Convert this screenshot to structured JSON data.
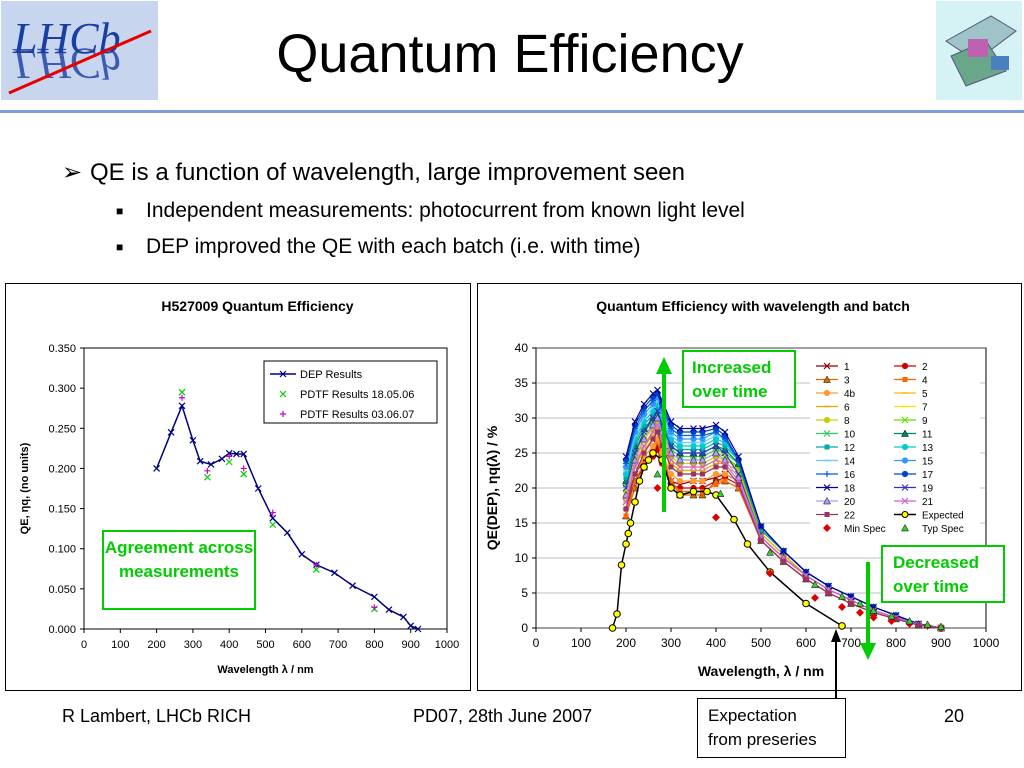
{
  "slide": {
    "title": "Quantum Efficiency",
    "bullets": [
      {
        "text": "QE is a function of wavelength, large improvement seen"
      },
      {
        "text": "Independent measurements: photocurrent from known light level"
      },
      {
        "text": "DEP improved the QE with each batch (i.e. with time)"
      }
    ],
    "footer_left": "R Lambert, LHCb RICH",
    "footer_center": "PD07, 28th June 2007",
    "footer_right": "20",
    "logo_left_text": "LHCb",
    "callouts": {
      "agreement": "Agreement across measurements",
      "increased": "Increased over time",
      "decreased": "Decreased over time",
      "expectation": "Expectation from preseries"
    },
    "colors": {
      "accent_green": "#00cc00",
      "title_rule": "#7ba0d8"
    }
  },
  "chart_data": [
    {
      "type": "line",
      "title": "H527009 Quantum Efficiency",
      "xlabel": "Wavelength λ / nm",
      "ylabel": "QE, ηq, (no units)",
      "xlim": [
        0,
        1000
      ],
      "ylim": [
        0,
        0.35
      ],
      "xticks": [
        "0",
        "100",
        "200",
        "300",
        "400",
        "500",
        "600",
        "700",
        "800",
        "900",
        "1000"
      ],
      "yticks": [
        "0.000",
        "0.050",
        "0.100",
        "0.150",
        "0.200",
        "0.250",
        "0.300",
        "0.350"
      ],
      "legend_position": "top-right",
      "series": [
        {
          "name": "DEP Results",
          "color": "#000080",
          "marker": "x",
          "x": [
            200,
            240,
            270,
            300,
            320,
            350,
            380,
            400,
            420,
            440,
            480,
            520,
            560,
            600,
            640,
            690,
            740,
            800,
            840,
            880,
            900,
            920
          ],
          "y": [
            0.2,
            0.245,
            0.278,
            0.235,
            0.209,
            0.205,
            0.212,
            0.219,
            0.218,
            0.218,
            0.175,
            0.138,
            0.12,
            0.093,
            0.08,
            0.07,
            0.054,
            0.04,
            0.024,
            0.015,
            0.004,
            0.0
          ]
        },
        {
          "name": "PDTF Results 18.05.06",
          "color": "#00cc00",
          "marker": "x",
          "x": [
            270,
            340,
            400,
            440,
            520,
            640,
            800
          ],
          "y": [
            0.295,
            0.189,
            0.208,
            0.193,
            0.13,
            0.074,
            0.025
          ]
        },
        {
          "name": "PDTF Results 03.06.07",
          "color": "#cc00cc",
          "marker": "+",
          "x": [
            270,
            340,
            400,
            440,
            520,
            640,
            800
          ],
          "y": [
            0.288,
            0.197,
            0.215,
            0.2,
            0.145,
            0.08,
            0.027
          ]
        }
      ]
    },
    {
      "type": "line",
      "title": "Quantum Efficiency with wavelength and batch",
      "xlabel": "Wavelength, λ / nm",
      "ylabel": "QE(DEP), ηq(λ) / %",
      "xlim": [
        0,
        1000
      ],
      "ylim": [
        0,
        40
      ],
      "xticks": [
        "0",
        "100",
        "200",
        "300",
        "400",
        "500",
        "600",
        "700",
        "800",
        "900",
        "1000"
      ],
      "yticks": [
        "0",
        "5",
        "10",
        "15",
        "20",
        "25",
        "30",
        "35",
        "40"
      ],
      "legend_position": "top-right",
      "x": [
        200,
        220,
        240,
        260,
        270,
        280,
        300,
        320,
        350,
        370,
        400,
        420,
        450,
        500,
        550,
        600,
        650,
        700,
        750,
        800,
        850,
        900
      ],
      "series": [
        {
          "name": "1",
          "color": "#8b0000",
          "marker": "x",
          "values": [
            18,
            22,
            24,
            25,
            26,
            24,
            21,
            20.5,
            21,
            21,
            21.5,
            22,
            21,
            13,
            10,
            7.5,
            5.5,
            4,
            2.5,
            1.5,
            0.5,
            0
          ]
        },
        {
          "name": "2",
          "color": "#cc0000",
          "marker": "o",
          "values": [
            17,
            21,
            23,
            24.5,
            25.5,
            23.5,
            20.5,
            20,
            20,
            20,
            21,
            21.5,
            20.5,
            12.5,
            9.5,
            7,
            5,
            3.5,
            2.2,
            1.3,
            0.4,
            0
          ]
        },
        {
          "name": "3",
          "color": "#d96c00",
          "marker": "^",
          "values": [
            16,
            20,
            23,
            25,
            27,
            25,
            21,
            19,
            19,
            19,
            21,
            21,
            20,
            12.5,
            9.5,
            7,
            5,
            3.5,
            2.2,
            1.3,
            0.4,
            0
          ]
        },
        {
          "name": "4",
          "color": "#ff6600",
          "marker": "s",
          "values": [
            16,
            21,
            23.5,
            25.5,
            26.5,
            24.5,
            21,
            19.5,
            19.5,
            19.5,
            20.5,
            21,
            20,
            12.5,
            9.5,
            7,
            5,
            3.5,
            2.2,
            1.3,
            0.4,
            0
          ]
        },
        {
          "name": "4b",
          "color": "#ff9933",
          "marker": "o",
          "values": [
            17,
            22,
            24.5,
            26,
            27,
            25,
            22,
            21,
            21,
            21,
            22,
            22,
            21,
            13,
            10,
            7.5,
            5.5,
            4,
            2.5,
            1.5,
            0.5,
            0
          ]
        },
        {
          "name": "5",
          "color": "#ffbb00",
          "marker": "-",
          "values": [
            18,
            23,
            25.5,
            27,
            28,
            26,
            23,
            22,
            22,
            22,
            23,
            23,
            22,
            13.5,
            10.5,
            7.5,
            5.5,
            4,
            2.5,
            1.5,
            0.5,
            0
          ]
        },
        {
          "name": "6",
          "color": "#e6a800",
          "marker": "-",
          "values": [
            18.5,
            23.5,
            26,
            27.5,
            28.5,
            26.5,
            23.5,
            22.5,
            22.5,
            22.5,
            23.5,
            23.5,
            22.5,
            13.5,
            10.5,
            7.5,
            5.5,
            4,
            2.5,
            1.5,
            0.5,
            0
          ]
        },
        {
          "name": "7",
          "color": "#ffdd00",
          "marker": "-",
          "values": [
            19,
            24,
            26.5,
            28,
            29,
            27,
            24,
            23,
            23,
            23,
            24,
            24,
            23,
            14,
            11,
            8,
            6,
            4.5,
            3,
            1.8,
            0.6,
            0
          ]
        },
        {
          "name": "8",
          "color": "#cccc00",
          "marker": "o",
          "values": [
            19.5,
            24.5,
            27,
            28.5,
            29.5,
            27.5,
            24.5,
            23.5,
            23.5,
            23.5,
            24.5,
            24,
            23,
            14,
            11,
            8,
            6,
            4.5,
            3,
            1.8,
            0.6,
            0
          ]
        },
        {
          "name": "9",
          "color": "#66dd00",
          "marker": "x",
          "values": [
            20,
            25,
            27.5,
            29,
            30,
            28,
            25,
            24,
            24,
            24,
            25,
            24.5,
            23,
            14,
            11,
            8,
            6,
            4.5,
            3,
            1.8,
            0.6,
            0
          ]
        },
        {
          "name": "10",
          "color": "#33cc66",
          "marker": "x",
          "values": [
            20.5,
            25.5,
            28,
            29.5,
            30.5,
            28.5,
            25.5,
            24.5,
            24.5,
            24.5,
            25.5,
            25,
            23.5,
            14,
            11,
            8,
            6,
            4.5,
            3,
            1.8,
            0.6,
            0
          ]
        },
        {
          "name": "11",
          "color": "#008866",
          "marker": "^",
          "values": [
            21,
            26,
            28.5,
            30,
            31,
            29,
            26,
            25,
            25,
            25,
            26,
            25.5,
            23.5,
            14,
            11,
            8,
            6,
            4.5,
            3,
            1.8,
            0.6,
            0
          ]
        },
        {
          "name": "12",
          "color": "#00aaaa",
          "marker": "s",
          "values": [
            21.5,
            26.5,
            29,
            30.5,
            31.5,
            29.5,
            26.5,
            25.5,
            25.5,
            25.5,
            26.5,
            26,
            24,
            14,
            11,
            8,
            6,
            4.5,
            3,
            1.8,
            0.6,
            0
          ]
        },
        {
          "name": "13",
          "color": "#00cccc",
          "marker": "o",
          "values": [
            22,
            27,
            29.5,
            31,
            32,
            30,
            27,
            26,
            26,
            26,
            27,
            26.5,
            24,
            14.5,
            11,
            8,
            6,
            4.5,
            3,
            1.8,
            0.6,
            0
          ]
        },
        {
          "name": "14",
          "color": "#66ccff",
          "marker": "-",
          "values": [
            22.5,
            27.5,
            30,
            31.5,
            32.5,
            30.5,
            27.5,
            26.5,
            26.5,
            26.5,
            27.5,
            27,
            24,
            14.5,
            11,
            8,
            6,
            4.5,
            3,
            1.8,
            0.6,
            0
          ]
        },
        {
          "name": "15",
          "color": "#3399ff",
          "marker": "o",
          "values": [
            23,
            28,
            30.5,
            32,
            33,
            31,
            28,
            27,
            27,
            27,
            28,
            27,
            24,
            14.5,
            11,
            8,
            6,
            4.5,
            3,
            1.8,
            0.6,
            0
          ]
        },
        {
          "name": "16",
          "color": "#0066cc",
          "marker": "+",
          "values": [
            23.5,
            28.5,
            31,
            32.5,
            33.5,
            31.5,
            28.5,
            27.5,
            27.5,
            27.5,
            28,
            27,
            24,
            14.5,
            11,
            8,
            6,
            4.5,
            3,
            1.8,
            0.6,
            0
          ]
        },
        {
          "name": "17",
          "color": "#0044cc",
          "marker": "o",
          "values": [
            24,
            29,
            31.5,
            33,
            33.5,
            32,
            29,
            28,
            28,
            28,
            28.5,
            27.5,
            24,
            14.5,
            11,
            8,
            6,
            4.5,
            3,
            1.8,
            0.6,
            0
          ]
        },
        {
          "name": "18",
          "color": "#000099",
          "marker": "x",
          "values": [
            24.5,
            29.5,
            32,
            33.5,
            34,
            32.5,
            29.5,
            28.5,
            28.5,
            28.5,
            29,
            28,
            24.5,
            14.5,
            11,
            8,
            6,
            4.5,
            3,
            1.8,
            0.6,
            0
          ]
        },
        {
          "name": "19",
          "color": "#3333cc",
          "marker": "x",
          "values": [
            20,
            25,
            28,
            30,
            31,
            29,
            26,
            25,
            25,
            25,
            26,
            25,
            22,
            13,
            10,
            7.5,
            5.5,
            4,
            2.5,
            1.5,
            0.5,
            0
          ]
        },
        {
          "name": "20",
          "color": "#b399ff",
          "marker": "^",
          "values": [
            19,
            24,
            27,
            29,
            30,
            28,
            25,
            24,
            24,
            24,
            25,
            24,
            21.5,
            13,
            10,
            7.5,
            5.5,
            4,
            2.5,
            1.5,
            0.5,
            0
          ]
        },
        {
          "name": "21",
          "color": "#cc66cc",
          "marker": "x",
          "values": [
            18,
            23,
            26,
            28,
            29,
            27,
            24,
            23,
            23,
            23,
            24,
            23.5,
            21,
            13,
            10,
            7.5,
            5.5,
            4,
            2.5,
            1.5,
            0.5,
            0
          ]
        },
        {
          "name": "22",
          "color": "#993366",
          "marker": "s",
          "values": [
            17,
            22,
            25,
            27,
            28,
            26,
            23,
            22,
            22,
            22,
            23,
            23,
            20.5,
            12.5,
            9.5,
            7,
            5,
            3.5,
            2.2,
            1.3,
            0.4,
            0
          ]
        }
      ],
      "expected": {
        "name": "Expected",
        "color": "#000000",
        "marker_fill": "#ffff00",
        "x": [
          170,
          180,
          190,
          200,
          205,
          210,
          220,
          230,
          240,
          250,
          260,
          280,
          300,
          320,
          350,
          380,
          400,
          440,
          470,
          520,
          600,
          680
        ],
        "y": [
          0,
          2,
          9,
          12,
          13.5,
          15,
          18,
          21,
          23,
          24,
          25,
          24,
          20,
          19,
          19.5,
          19.5,
          19,
          15.5,
          12,
          8,
          3.5,
          0.3
        ]
      },
      "min_spec": {
        "name": "Min Spec",
        "color": "#dd0000",
        "x": [
          270,
          400,
          520,
          620,
          680,
          720,
          750,
          790,
          830,
          870,
          900
        ],
        "y": [
          20,
          15.8,
          7.8,
          4.3,
          3,
          2.2,
          1.5,
          1,
          0.6,
          0.3,
          0.1
        ]
      },
      "typ_spec": {
        "name": "Typ Spec",
        "color": "#33cc33",
        "x": [
          270,
          410,
          520,
          620,
          680,
          720,
          750,
          790,
          830,
          870,
          900
        ],
        "y": [
          22,
          19.2,
          10.8,
          6.2,
          4.5,
          3.5,
          2.5,
          1.7,
          1,
          0.5,
          0.2
        ]
      }
    }
  ]
}
